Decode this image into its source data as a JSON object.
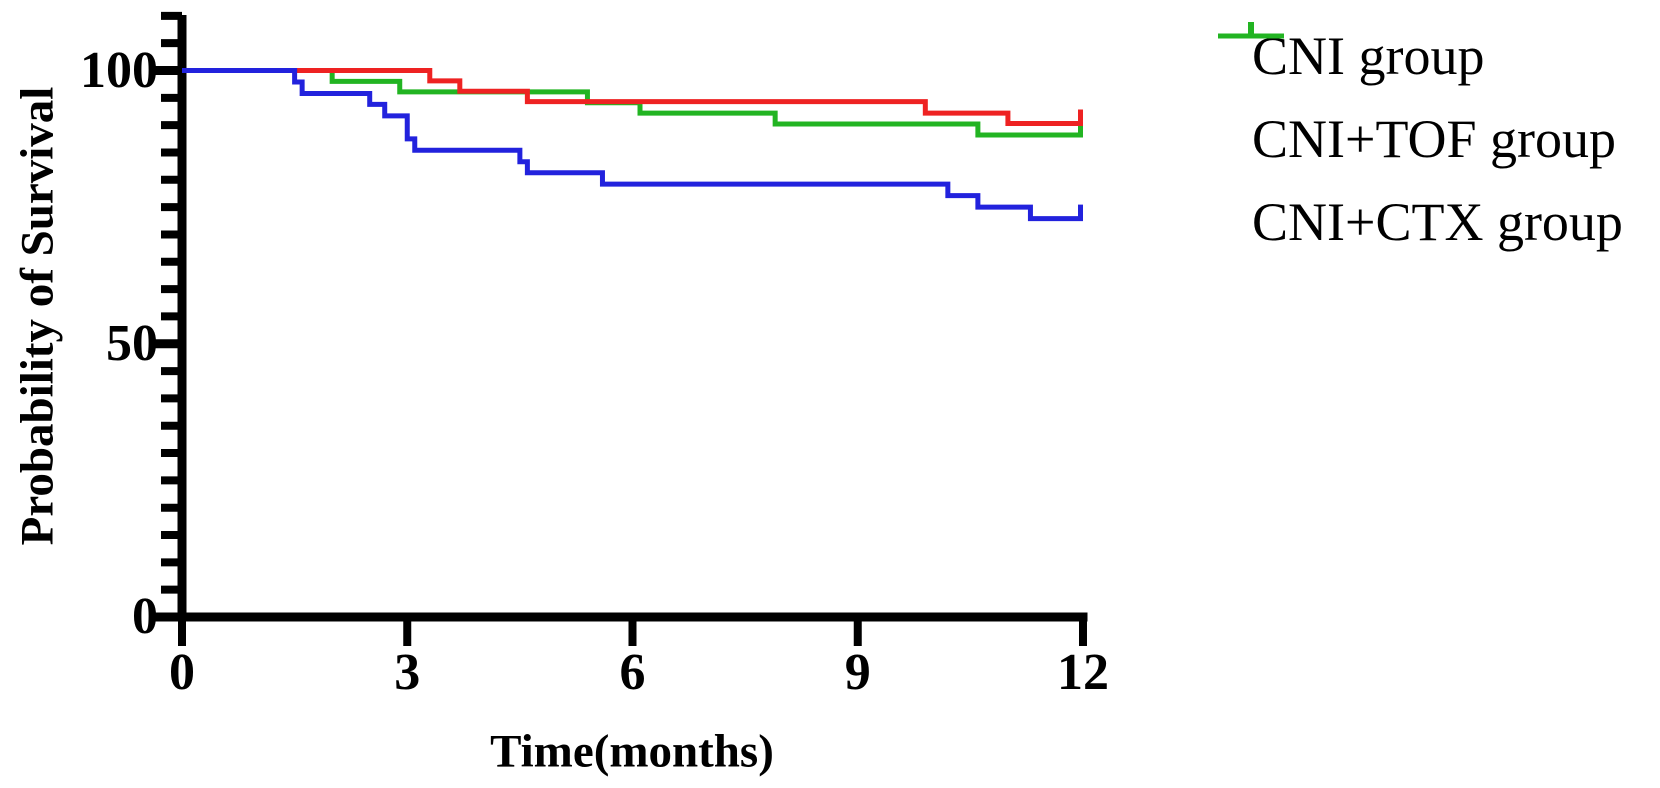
{
  "figure": {
    "background": "#ffffff",
    "axis_color": "#000000"
  },
  "chart_data": {
    "type": "line",
    "subtype": "kaplan-meier-step",
    "title": "",
    "xlabel": "Time(months)",
    "ylabel": "Probability of Survival",
    "xlim": [
      0,
      12
    ],
    "ylim": [
      0,
      110
    ],
    "x_ticks": [
      0,
      3,
      6,
      9,
      12
    ],
    "x_tick_labels": [
      "0",
      "3",
      "6",
      "9",
      "12"
    ],
    "y_ticks": [
      0,
      50,
      100
    ],
    "y_tick_labels": [
      "0",
      "50",
      "100"
    ],
    "y_minor_tick_step": 5,
    "grid": false,
    "legend_position": "right-outside",
    "series": [
      {
        "name": "CNI group",
        "color": "#2222dd",
        "start": [
          0,
          100
        ],
        "steps": [
          [
            1.5,
            97.9
          ],
          [
            1.6,
            95.8
          ],
          [
            2.5,
            93.8
          ],
          [
            2.7,
            91.7
          ],
          [
            3.0,
            87.5
          ],
          [
            3.1,
            85.4
          ],
          [
            4.5,
            83.3
          ],
          [
            4.6,
            81.3
          ],
          [
            5.6,
            79.2
          ],
          [
            10.2,
            77.1
          ],
          [
            10.6,
            75.0
          ],
          [
            11.3,
            72.9
          ]
        ],
        "end_time": 12,
        "end_censor_tick": true
      },
      {
        "name": "CNI+TOF group",
        "color": "#ee2222",
        "start": [
          0,
          100
        ],
        "steps": [
          [
            3.3,
            98.1
          ],
          [
            3.7,
            96.2
          ],
          [
            4.6,
            94.3
          ],
          [
            9.9,
            92.2
          ],
          [
            11.0,
            90.3
          ]
        ],
        "end_time": 12,
        "end_censor_tick": true
      },
      {
        "name": "CNI+CTX group",
        "color": "#22b422",
        "start": [
          0,
          100
        ],
        "steps": [
          [
            2.0,
            98.0
          ],
          [
            2.9,
            96.1
          ],
          [
            5.4,
            94.1
          ],
          [
            6.1,
            92.2
          ],
          [
            7.9,
            90.2
          ],
          [
            10.6,
            88.2
          ]
        ],
        "end_time": 12,
        "end_censor_tick": true
      }
    ]
  }
}
